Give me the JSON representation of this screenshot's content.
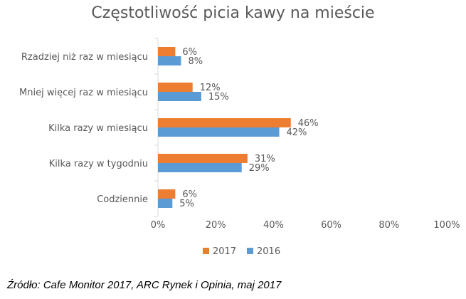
{
  "chart_data": {
    "type": "bar",
    "orientation": "horizontal",
    "title": "Częstotliwość picia kawy na mieście",
    "categories": [
      "Rzadziej niż raz  w miesiącu",
      "Mniej więcej raz w miesiącu",
      "Kilka razy w miesiącu",
      "Kilka razy w tygodniu",
      "Codziennie"
    ],
    "series": [
      {
        "name": "2017",
        "color": "#ED7D31",
        "values": [
          6,
          12,
          46,
          31,
          6
        ],
        "labels": [
          "6%",
          "12%",
          "46%",
          "31%",
          "6%"
        ]
      },
      {
        "name": "2016",
        "color": "#5B9BD5",
        "values": [
          8,
          15,
          42,
          29,
          5
        ],
        "labels": [
          "8%",
          "15%",
          "42%",
          "29%",
          "5%"
        ]
      }
    ],
    "xlim": [
      0,
      100
    ],
    "xticks": [
      0,
      20,
      40,
      60,
      80,
      100
    ],
    "xtick_labels": [
      "0%",
      "20%",
      "40%",
      "60%",
      "80%",
      "100%"
    ],
    "grid": false,
    "legend_position": "bottom"
  },
  "source": "Źródło: Cafe Monitor 2017, ARC Rynek i Opinia, maj 2017"
}
